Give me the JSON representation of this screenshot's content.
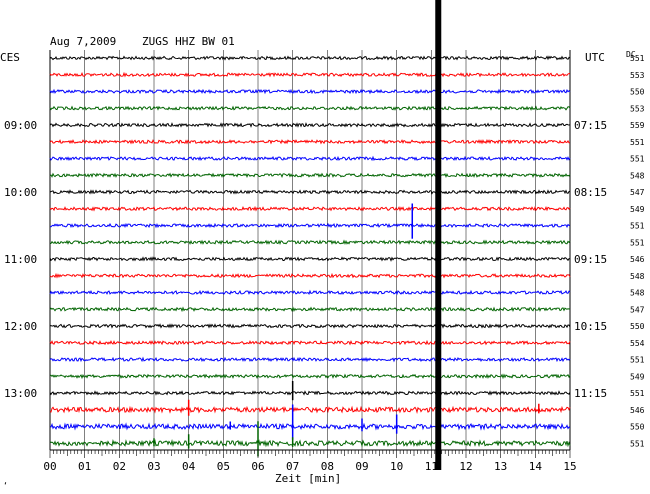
{
  "header": {
    "date": "Aug 7,2009",
    "station": "ZUGS HHZ BW 01",
    "left_tz": "CES",
    "right_tz": "UTC",
    "dc_label": "DC",
    "corner_mark": "‘"
  },
  "colors": {
    "trace_cycle": [
      "#000000",
      "#ff0000",
      "#0000ff",
      "#006400"
    ],
    "grid": "#000000",
    "event_bar": "#000000"
  },
  "chart_data": {
    "type": "line",
    "title": "Aug 7,2009   ZUGS HHZ BW 01",
    "xlabel": "Zeit [min]",
    "ylabel": "",
    "xlim": [
      0,
      15
    ],
    "x_ticks": [
      "00",
      "01",
      "02",
      "03",
      "04",
      "05",
      "06",
      "07",
      "08",
      "09",
      "10",
      "11",
      "12",
      "13",
      "14",
      "15"
    ],
    "num_traces": 24,
    "left_time_labels": [
      {
        "trace": 4,
        "label": "09:00"
      },
      {
        "trace": 8,
        "label": "10:00"
      },
      {
        "trace": 12,
        "label": "11:00"
      },
      {
        "trace": 16,
        "label": "12:00"
      },
      {
        "trace": 20,
        "label": "13:00"
      }
    ],
    "right_time_labels": [
      {
        "trace": 4,
        "label": "07:15"
      },
      {
        "trace": 8,
        "label": "08:15"
      },
      {
        "trace": 12,
        "label": "09:15"
      },
      {
        "trace": 16,
        "label": "10:15"
      },
      {
        "trace": 20,
        "label": "11:15"
      }
    ],
    "dc_values": [
      "551",
      "553",
      "550",
      "553",
      "559",
      "551",
      "551",
      "548",
      "547",
      "549",
      "551",
      "551",
      "546",
      "548",
      "548",
      "547",
      "550",
      "554",
      "551",
      "549",
      "551",
      "546",
      "550",
      "551"
    ],
    "event_minute": 11.2,
    "spikes": [
      {
        "trace": 10,
        "minute": 10.45,
        "amp": 22
      },
      {
        "trace": 20,
        "minute": 7.0,
        "amp": 12
      },
      {
        "trace": 21,
        "minute": 4.0,
        "amp": 10
      },
      {
        "trace": 21,
        "minute": 14.1,
        "amp": 6
      },
      {
        "trace": 22,
        "minute": 5.2,
        "amp": 5
      },
      {
        "trace": 22,
        "minute": 7.0,
        "amp": 22
      },
      {
        "trace": 22,
        "minute": 9.0,
        "amp": 8
      },
      {
        "trace": 22,
        "minute": 10.0,
        "amp": 12
      },
      {
        "trace": 23,
        "minute": 3.0,
        "amp": 5
      },
      {
        "trace": 23,
        "minute": 4.0,
        "amp": 9
      },
      {
        "trace": 23,
        "minute": 6.0,
        "amp": 22
      },
      {
        "trace": 23,
        "minute": 7.0,
        "amp": 6
      }
    ]
  }
}
